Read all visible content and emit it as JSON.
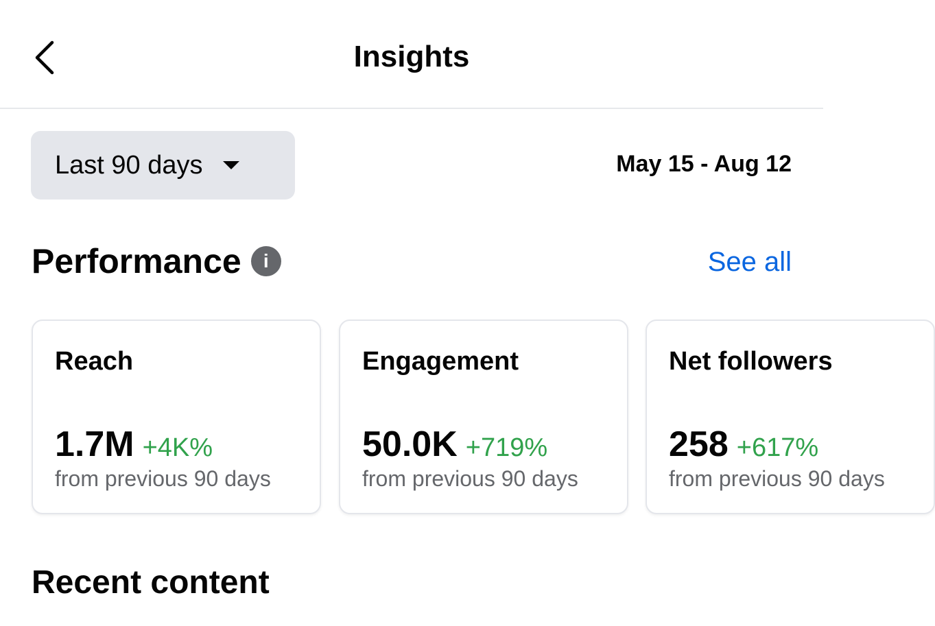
{
  "header": {
    "title": "Insights",
    "back_icon": "chevron-left-icon"
  },
  "filter": {
    "selected": "Last 90 days",
    "date_range": "May 15 - Aug 12"
  },
  "performance": {
    "heading": "Performance",
    "info_icon": "i",
    "see_all": "See all",
    "cards": [
      {
        "title": "Reach",
        "value": "1.7M",
        "change": "+4K%",
        "subtitle": "from previous 90 days"
      },
      {
        "title": "Engagement",
        "value": "50.0K",
        "change": "+719%",
        "subtitle": "from previous 90 days"
      },
      {
        "title": "Net followers",
        "value": "258",
        "change": "+617%",
        "subtitle": "from previous 90 days"
      }
    ]
  },
  "recent": {
    "heading": "Recent content"
  },
  "colors": {
    "positive": "#31a24c",
    "link": "#0a66e0",
    "chip": "#e4e6eb",
    "muted": "#65676b"
  }
}
